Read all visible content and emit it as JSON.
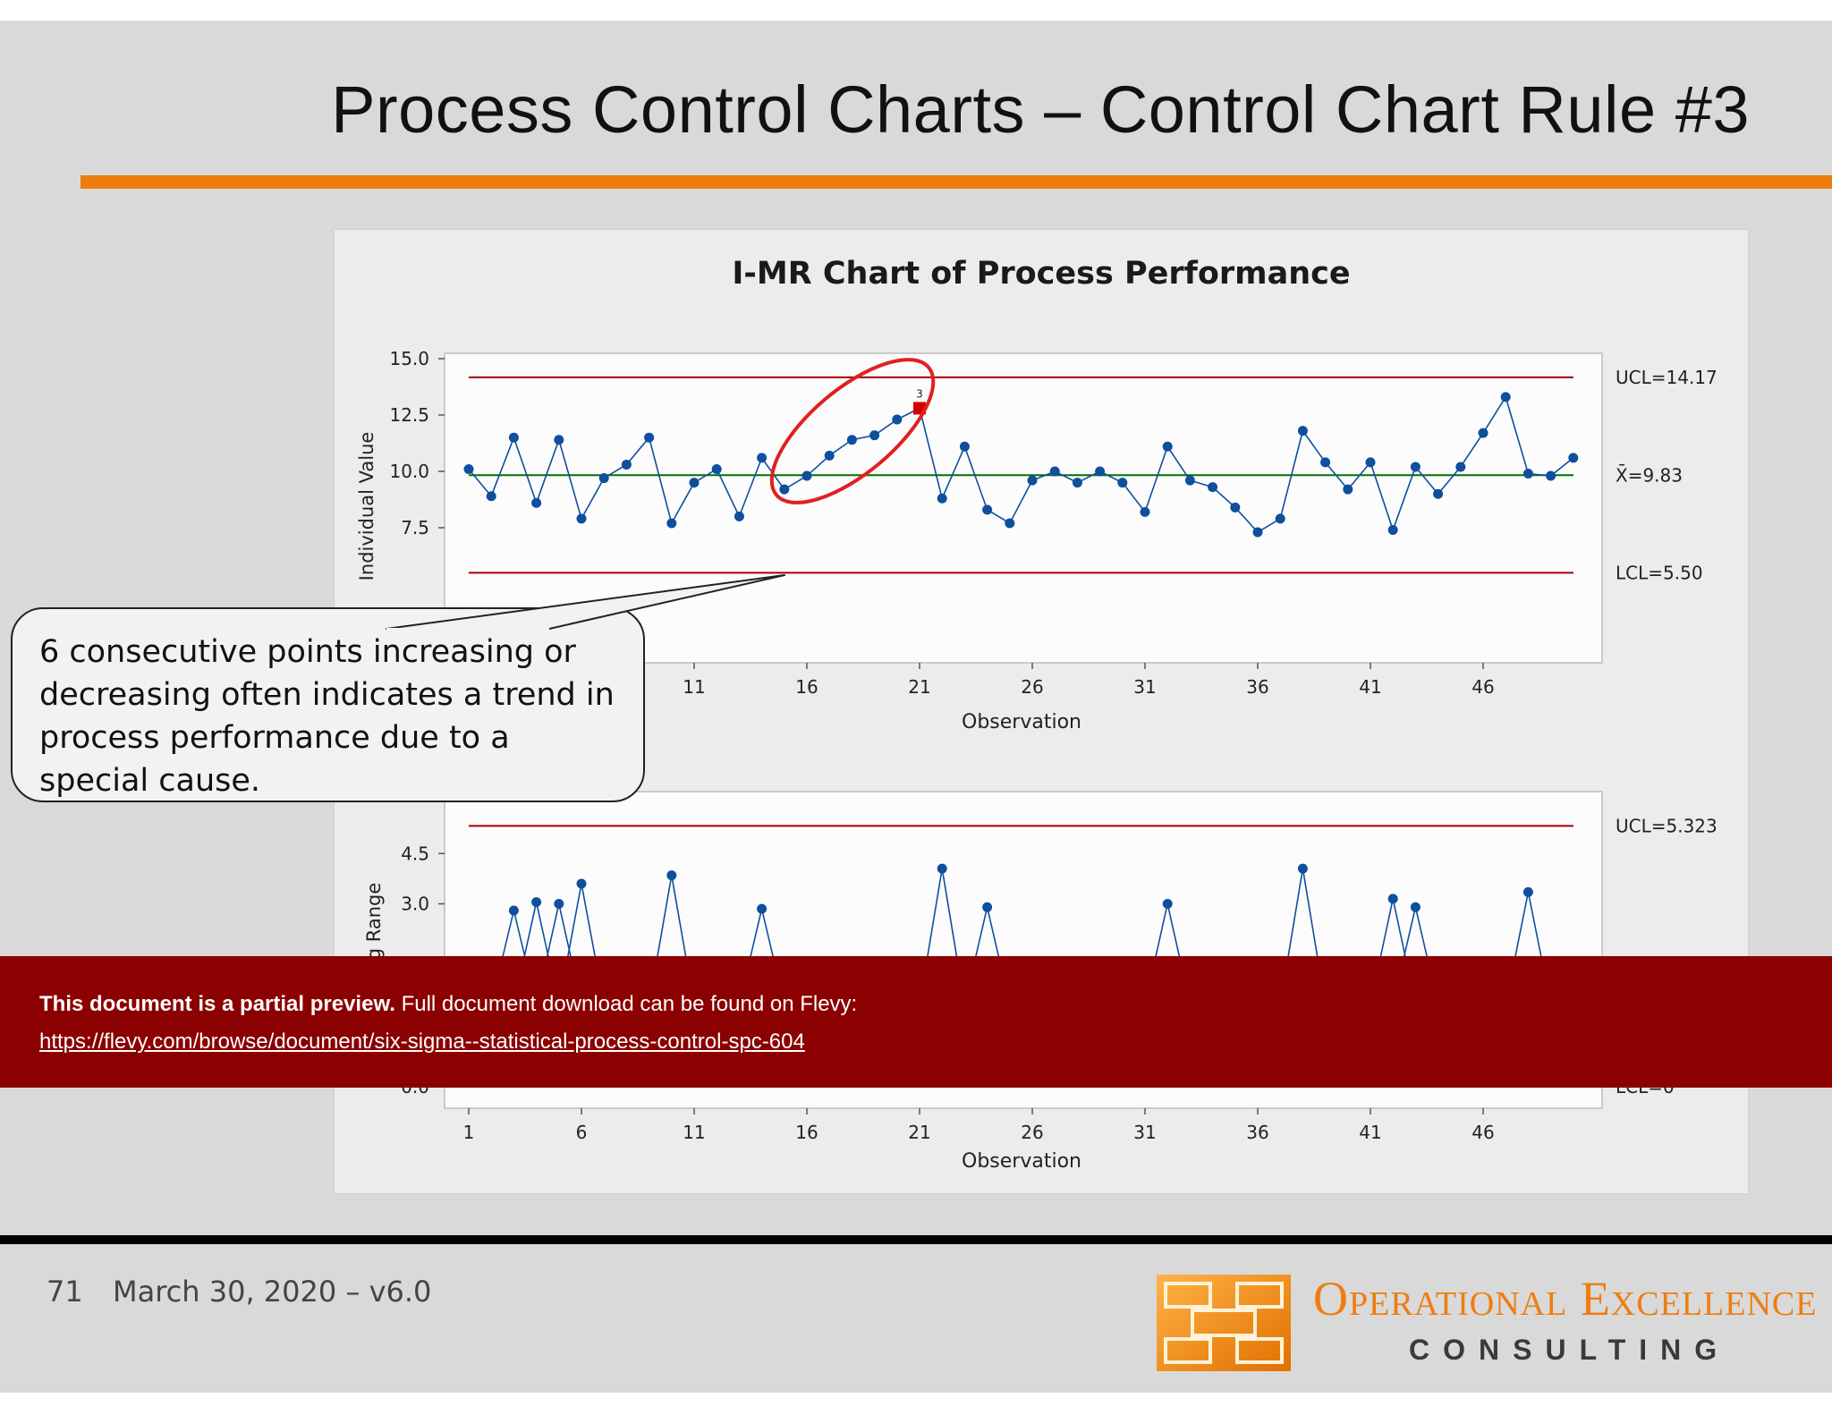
{
  "slide": {
    "title": "Process Control Charts – Control Chart Rule #3",
    "page_number": "71",
    "date_version": "March 30, 2020 – v6.0"
  },
  "callout": {
    "text": "6 consecutive points increasing or decreasing often indicates a trend in process performance due to a special cause."
  },
  "banner": {
    "lead": "This document is a partial preview.",
    "text": "Full document download can be found on Flevy:",
    "link": "https://flevy.com/browse/document/six-sigma--statistical-process-control-spc-604"
  },
  "logo": {
    "line1": "Operational Excellence",
    "line2": "CONSULTING"
  },
  "colors": {
    "accent": "#ee7d10",
    "banner": "#8b0000",
    "limit_line": "#a40000",
    "center_line": "#007000",
    "series": "#0e4f9e",
    "flag": "#d40000",
    "ellipse": "#e02020"
  },
  "chart_data": [
    {
      "type": "line",
      "title": "I-MR Chart of Process Performance",
      "ylabel": "Individual Value",
      "xlabel": "Observation",
      "ylim": [
        5.0,
        15.0
      ],
      "yticks": [
        7.5,
        10.0,
        12.5,
        15.0
      ],
      "ytick_labels": [
        "7.5",
        "10.0",
        "12.5",
        "15.0"
      ],
      "xtick_labels": [
        "11",
        "16",
        "21",
        "26",
        "31",
        "36",
        "41",
        "46"
      ],
      "x": [
        1,
        2,
        3,
        4,
        5,
        6,
        7,
        8,
        9,
        10,
        11,
        12,
        13,
        14,
        15,
        16,
        17,
        18,
        19,
        20,
        21,
        22,
        23,
        24,
        25,
        26,
        27,
        28,
        29,
        30,
        31,
        32,
        33,
        34,
        35,
        36,
        37,
        38,
        39,
        40,
        41,
        42,
        43,
        44,
        45,
        46,
        47,
        48,
        49,
        50
      ],
      "values": [
        10.1,
        8.9,
        11.5,
        8.6,
        11.4,
        7.9,
        9.7,
        10.3,
        11.5,
        7.7,
        9.5,
        10.1,
        8.0,
        10.6,
        9.2,
        9.8,
        10.7,
        11.4,
        11.6,
        12.3,
        12.8,
        8.8,
        11.1,
        8.3,
        7.7,
        9.6,
        10.0,
        9.5,
        10.0,
        9.5,
        8.2,
        11.1,
        9.6,
        9.3,
        8.4,
        7.3,
        7.9,
        11.8,
        10.4,
        9.2,
        10.4,
        7.4,
        10.2,
        9.0,
        10.2,
        11.7,
        13.3,
        9.9,
        9.8,
        10.6
      ],
      "limits": [
        {
          "label": "UCL=14.17",
          "value": 14.17
        },
        {
          "label": "X̄=9.83",
          "value": 9.83
        },
        {
          "label": "LCL=5.50",
          "value": 5.5
        }
      ],
      "flagged_point": {
        "x": 21,
        "rule": "3"
      },
      "grid": false
    },
    {
      "type": "line",
      "ylabel": "g Range",
      "xlabel": "Observation",
      "ylim": [
        0.0,
        6.0
      ],
      "yticks": [
        3.0,
        4.5
      ],
      "ytick_labels": [
        "3.0",
        "4.5"
      ],
      "xtick_labels": [
        "1",
        "6",
        "11",
        "16",
        "21",
        "26",
        "31",
        "36",
        "41",
        "46"
      ],
      "x": [
        3,
        4,
        5,
        6,
        10,
        14,
        22,
        24,
        32,
        38,
        42,
        43,
        48
      ],
      "values": [
        2.8,
        3.05,
        3.0,
        3.6,
        3.85,
        2.85,
        4.05,
        2.9,
        3.0,
        4.05,
        3.15,
        2.9,
        3.35
      ],
      "limits": [
        {
          "label": "UCL=5.323",
          "value": 5.323
        }
      ],
      "grid": false
    }
  ]
}
